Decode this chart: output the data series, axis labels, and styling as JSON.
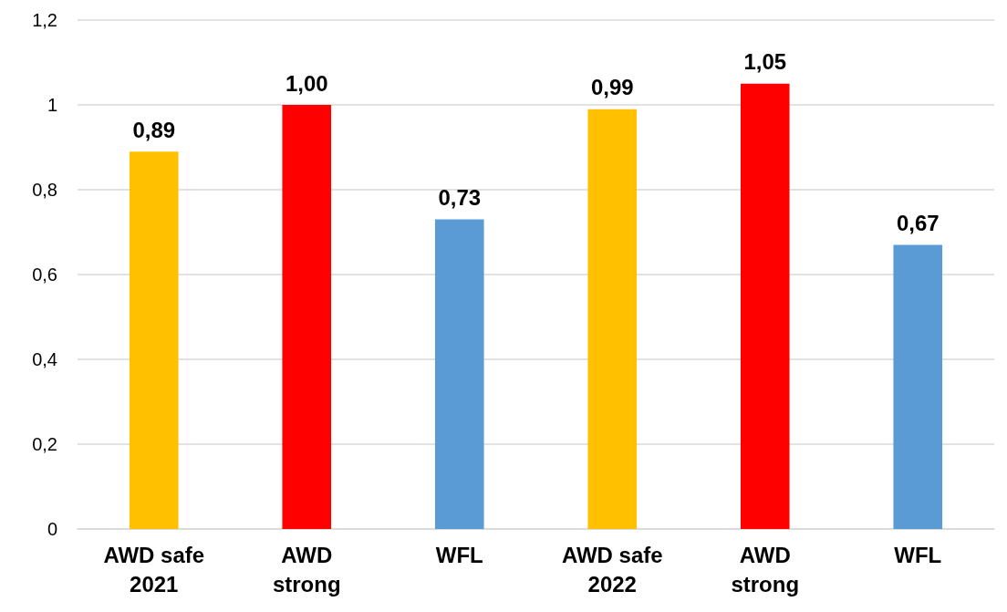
{
  "chart_data": {
    "type": "bar",
    "categories": [
      "AWD safe\n2021",
      "AWD\nstrong",
      "WFL",
      "AWD safe\n2022",
      "AWD\nstrong",
      "WFL"
    ],
    "values": [
      0.89,
      1.0,
      0.73,
      0.99,
      1.05,
      0.67
    ],
    "colors": [
      "#ffc000",
      "#ff0000",
      "#5b9bd5",
      "#ffc000",
      "#ff0000",
      "#5b9bd5"
    ],
    "value_labels": [
      "0,89",
      "1,00",
      "0,73",
      "0,99",
      "1,05",
      "0,67"
    ],
    "ylim": [
      0,
      1.2
    ],
    "yticks": [
      0,
      {
        "value": 0.2,
        "label": "0,2"
      },
      {
        "value": 0.4,
        "label": "0,4"
      },
      {
        "value": 0.6,
        "label": "0,6"
      },
      {
        "value": 0.8,
        "label": "0,8"
      },
      1,
      {
        "value": 1.2,
        "label": "1,2"
      }
    ],
    "grid": "y"
  }
}
